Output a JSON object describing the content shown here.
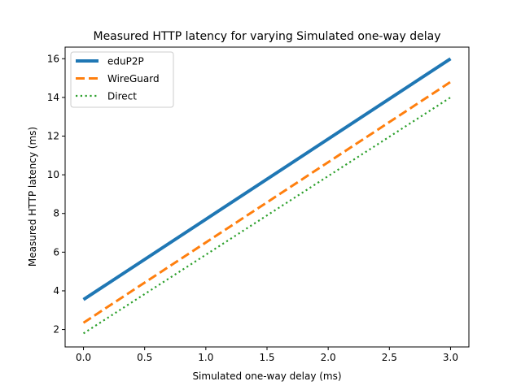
{
  "chart_data": {
    "type": "line",
    "title": "Measured HTTP latency for varying Simulated one-way delay",
    "xlabel": "Simulated one-way delay (ms)",
    "ylabel": "Measured HTTP latency (ms)",
    "xlim": [
      -0.15,
      3.15
    ],
    "ylim": [
      1.1,
      16.6
    ],
    "xticks": [
      0.0,
      0.5,
      1.0,
      1.5,
      2.0,
      2.5,
      3.0
    ],
    "xtick_labels": [
      "0.0",
      "0.5",
      "1.0",
      "1.5",
      "2.0",
      "2.5",
      "3.0"
    ],
    "yticks": [
      2,
      4,
      6,
      8,
      10,
      12,
      14,
      16
    ],
    "ytick_labels": [
      "2",
      "4",
      "6",
      "8",
      "10",
      "12",
      "14",
      "16"
    ],
    "grid": false,
    "legend_position": "top-left",
    "series": [
      {
        "name": "eduP2P",
        "x": [
          0,
          3
        ],
        "y": [
          3.55,
          16.0
        ],
        "color": "#1f77b4",
        "style": "solid"
      },
      {
        "name": "WireGuard",
        "x": [
          0,
          3
        ],
        "y": [
          2.35,
          14.8
        ],
        "color": "#ff7f0e",
        "style": "dashed"
      },
      {
        "name": "Direct",
        "x": [
          0,
          3
        ],
        "y": [
          1.8,
          14.0
        ],
        "color": "#2ca02c",
        "style": "dotted"
      }
    ]
  }
}
